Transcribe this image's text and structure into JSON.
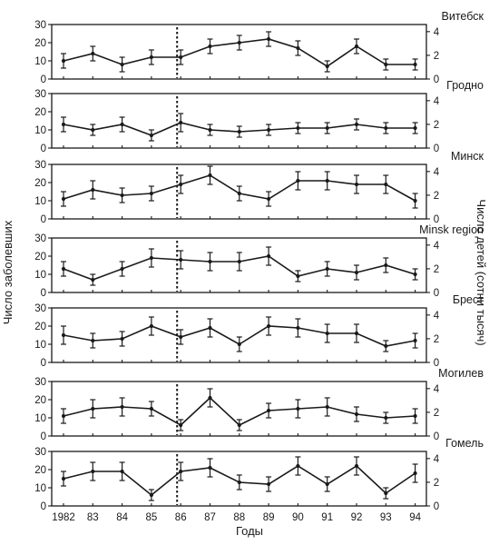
{
  "chart_data": {
    "type": "line",
    "x": [
      "1982",
      "83",
      "84",
      "85",
      "86",
      "87",
      "88",
      "89",
      "90",
      "91",
      "92",
      "93",
      "94"
    ],
    "xlabel": "Годы",
    "ylabel_left": "Число заболевших",
    "ylabel_right": "Число детей  (сотни тысяч)",
    "ylim_left": [
      0,
      30
    ],
    "yticks_left": [
      "0",
      "10",
      "20",
      "30"
    ],
    "ylim_right": [
      0,
      4.6
    ],
    "yticks_right": [
      "0",
      "2",
      "4"
    ],
    "reference_line_x": "86",
    "panels": [
      {
        "title": "Витебск",
        "values": [
          10,
          14,
          8,
          12,
          12,
          18,
          20,
          22,
          17,
          7,
          18,
          8,
          8
        ],
        "error": [
          4,
          4,
          4,
          4,
          4,
          4,
          4,
          4,
          4,
          3,
          4,
          3,
          3
        ]
      },
      {
        "title": "Гродно",
        "values": [
          13,
          10,
          13,
          7,
          14,
          10,
          9,
          10,
          11,
          11,
          13,
          11,
          11
        ],
        "error": [
          4,
          3,
          4,
          3,
          5,
          3,
          3,
          3,
          3,
          3,
          3,
          3,
          3
        ]
      },
      {
        "title": "Минск",
        "values": [
          11,
          16,
          13,
          14,
          19,
          24,
          14,
          11,
          21,
          21,
          19,
          19,
          10
        ],
        "error": [
          4,
          5,
          4,
          4,
          5,
          5,
          4,
          4,
          5,
          5,
          5,
          5,
          4
        ]
      },
      {
        "title": "Minsk region",
        "values": [
          13,
          7,
          13,
          19,
          18,
          17,
          17,
          20,
          9,
          13,
          11,
          15,
          10
        ],
        "error": [
          4,
          3,
          4,
          5,
          5,
          5,
          5,
          5,
          3,
          4,
          4,
          4,
          3
        ]
      },
      {
        "title": "Брест",
        "values": [
          15,
          12,
          13,
          20,
          14,
          19,
          10,
          20,
          19,
          16,
          16,
          9,
          12
        ],
        "error": [
          5,
          4,
          4,
          5,
          4,
          5,
          4,
          5,
          5,
          5,
          5,
          3,
          4
        ]
      },
      {
        "title": "Могилев",
        "values": [
          11,
          15,
          16,
          15,
          6,
          21,
          6,
          14,
          15,
          16,
          12,
          10,
          11
        ],
        "error": [
          4,
          5,
          5,
          4,
          3,
          5,
          3,
          4,
          5,
          5,
          4,
          3,
          4
        ]
      },
      {
        "title": "Гомель",
        "values": [
          15,
          19,
          19,
          6,
          19,
          21,
          13,
          12,
          22,
          12,
          22,
          7,
          18
        ],
        "error": [
          4,
          5,
          5,
          3,
          5,
          5,
          4,
          4,
          5,
          4,
          5,
          3,
          5
        ]
      }
    ]
  }
}
